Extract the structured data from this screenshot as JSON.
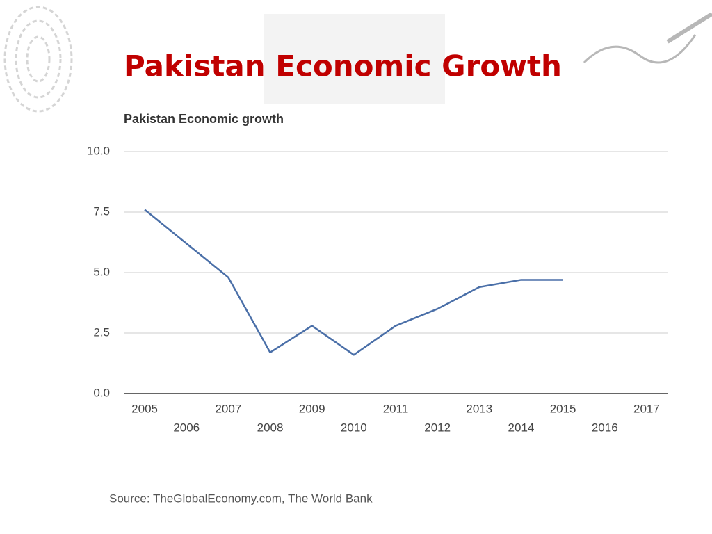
{
  "slide_title": "Pakistan Economic Growth",
  "chart_data": {
    "type": "line",
    "title": "Pakistan Economic growth",
    "categories": [
      "2005",
      "2006",
      "2007",
      "2008",
      "2009",
      "2010",
      "2011",
      "2012",
      "2013",
      "2014",
      "2015",
      "2016",
      "2017"
    ],
    "series": [
      {
        "name": "Pakistan Economic growth",
        "color": "#4a6fa8",
        "values": [
          7.6,
          6.2,
          4.8,
          1.7,
          2.8,
          1.6,
          2.8,
          3.5,
          4.4,
          4.7,
          4.7,
          null,
          null
        ]
      }
    ],
    "ylim": [
      0,
      10
    ],
    "yticks": [
      {
        "value": 0,
        "label": "0.0"
      },
      2.5,
      {
        "value": 5,
        "label": "5.0"
      },
      7.5,
      {
        "value": 10,
        "label": "10.0"
      }
    ],
    "grid": true
  },
  "source": "Source: TheGlobalEconomy.com, The World Bank"
}
